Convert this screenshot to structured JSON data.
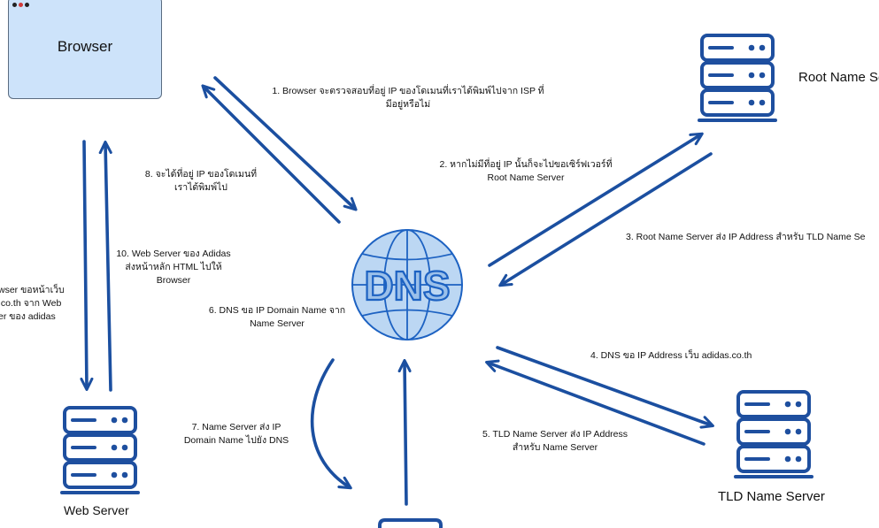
{
  "browser": {
    "title": "Browser"
  },
  "dns": {
    "label": "DNS"
  },
  "servers": {
    "root": "Root Name Server",
    "tld": "TLD Name Server",
    "web": "Web Server"
  },
  "steps": {
    "s1": [
      "1. Browser จะตรวจสอบที่อยู่  IP ของโดเมนที่เราได้พิมพ์ไปจาก ISP ที่",
      "มีอยู่หรือไม่"
    ],
    "s2": [
      "2. หากไม่มีที่อยู่ IP นั้นก็จะไปขอเซิร์ฟเวอร์ที่",
      "Root Name Server"
    ],
    "s3": [
      "3. Root Name Server ส่ง IP Address สำหรับ TLD Name Se"
    ],
    "s4": [
      "4. DNS ขอ IP Address เว็บ adidas.co.th"
    ],
    "s5": [
      "5. TLD Name Server ส่ง IP Address",
      "สำหรับ Name Server"
    ],
    "s6": [
      "6. DNS ขอ IP Domain Name จาก",
      "Name Server"
    ],
    "s7": [
      "7. Name Server ส่ง IP",
      "Domain Name ไปยัง DNS"
    ],
    "s8": [
      "8. จะได้ที่อยู่ IP ของโดเมนที่",
      "เราได้พิมพ์ไป"
    ],
    "s9": [
      "wser ขอหน้าเว็บ",
      ".co.th จาก Web",
      "er ของ adidas"
    ],
    "s10": [
      "10. Web Server ของ Adidas",
      "ส่งหน้าหลัก HTML ไปให้",
      "Browser"
    ]
  },
  "colors": {
    "arrow": "#1b4fa0",
    "server_stroke": "#1e4f9f",
    "browser_fill": "#cde3fa",
    "dns_fill": "#bcd7f3",
    "window_dots": [
      "#222222",
      "#d23a3a",
      "#222222"
    ]
  }
}
